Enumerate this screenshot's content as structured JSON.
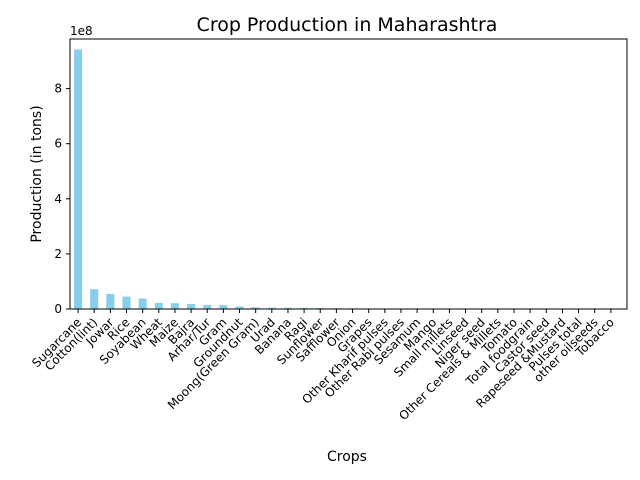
{
  "chart_data": {
    "type": "bar",
    "title": "Crop Production in Maharashtra",
    "xlabel": "Crops",
    "ylabel": "Production (in tons)",
    "y_multiplier_label": "1e8",
    "ylim": [
      0,
      9.8
    ],
    "yticks": [
      0,
      2,
      4,
      6,
      8
    ],
    "ytick_labels": [
      "0",
      "2",
      "4",
      "6",
      "8"
    ],
    "bar_color": "#87CEEB",
    "categories": [
      "Sugarcane",
      "Cotton(lint)",
      "Jowar",
      "Rice",
      "Soyabean",
      "Wheat",
      "Maize",
      "Bajra",
      "Arhar/Tur",
      "Gram",
      "Groundnut",
      "Moong(Green Gram)",
      "Urad",
      "Banana",
      "Ragi",
      "Sunflower",
      "Safflower",
      "Onion",
      "Grapes",
      "Other Kharif pulses",
      "Other  Rabi pulses",
      "Sesamum",
      "Mango",
      "Small millets",
      "Linseed",
      "Niger seed",
      "Other Cereals & Millets",
      "Tomato",
      "Total foodgrain",
      "Castor seed",
      "Rapeseed &Mustard",
      "Pulses total",
      "other oilseeds",
      "Tobacco"
    ],
    "values": [
      9.42,
      0.72,
      0.55,
      0.45,
      0.38,
      0.22,
      0.21,
      0.18,
      0.15,
      0.14,
      0.09,
      0.06,
      0.05,
      0.045,
      0.04,
      0.035,
      0.03,
      0.025,
      0.02,
      0.015,
      0.012,
      0.01,
      0.008,
      0.006,
      0.005,
      0.004,
      0.003,
      0.0025,
      0.002,
      0.0015,
      0.001,
      0.0008,
      0.0005,
      0.0003
    ]
  }
}
